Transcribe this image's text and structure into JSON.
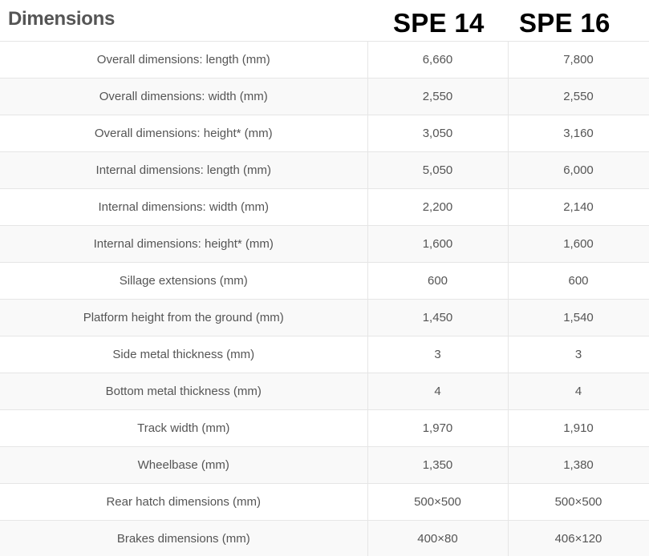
{
  "section": {
    "title": "Dimensions"
  },
  "models": [
    "SPE 14",
    "SPE 16"
  ],
  "rows": [
    {
      "label": "Overall dimensions: length (mm)",
      "v1": "6,660",
      "v2": "7,800"
    },
    {
      "label": "Overall dimensions: width (mm)",
      "v1": "2,550",
      "v2": "2,550"
    },
    {
      "label": "Overall dimensions: height* (mm)",
      "v1": "3,050",
      "v2": "3,160"
    },
    {
      "label": "Internal dimensions: length (mm)",
      "v1": "5,050",
      "v2": "6,000"
    },
    {
      "label": "Internal dimensions: width (mm)",
      "v1": "2,200",
      "v2": "2,140"
    },
    {
      "label": "Internal dimensions: height* (mm)",
      "v1": "1,600",
      "v2": "1,600"
    },
    {
      "label": "Sillage extensions (mm)",
      "v1": "600",
      "v2": "600"
    },
    {
      "label": "Platform height from the ground (mm)",
      "v1": "1,450",
      "v2": "1,540"
    },
    {
      "label": "Side metal thickness (mm)",
      "v1": "3",
      "v2": "3"
    },
    {
      "label": "Bottom metal thickness (mm)",
      "v1": "4",
      "v2": "4"
    },
    {
      "label": "Track width (mm)",
      "v1": "1,970",
      "v2": "1,910"
    },
    {
      "label": "Wheelbase (mm)",
      "v1": "1,350",
      "v2": "1,380"
    },
    {
      "label": "Rear hatch dimensions (mm)",
      "v1": "500×500",
      "v2": "500×500"
    },
    {
      "label": "Brakes dimensions (mm)",
      "v1": "400×80",
      "v2": "406×120"
    }
  ]
}
